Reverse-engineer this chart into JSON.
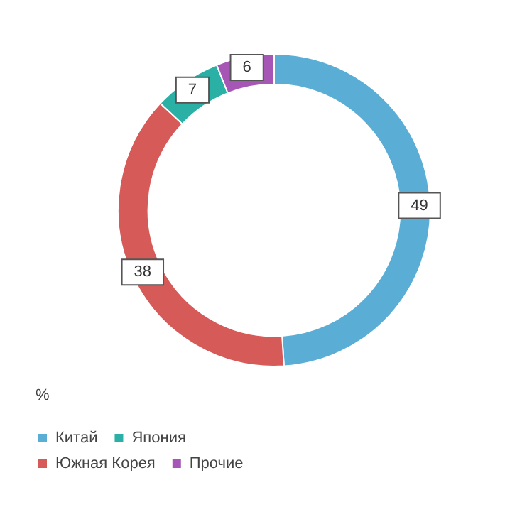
{
  "chart_data": {
    "type": "donut",
    "legend_title": "%",
    "categories": [
      "Китай",
      "Южная Корея",
      "Япония",
      "Прочие"
    ],
    "values": [
      49,
      38,
      7,
      6
    ],
    "colors": [
      "#5aaed6",
      "#d65a57",
      "#2bb0a6",
      "#a657b5"
    ],
    "data_labels": true,
    "legend": "bottom"
  }
}
